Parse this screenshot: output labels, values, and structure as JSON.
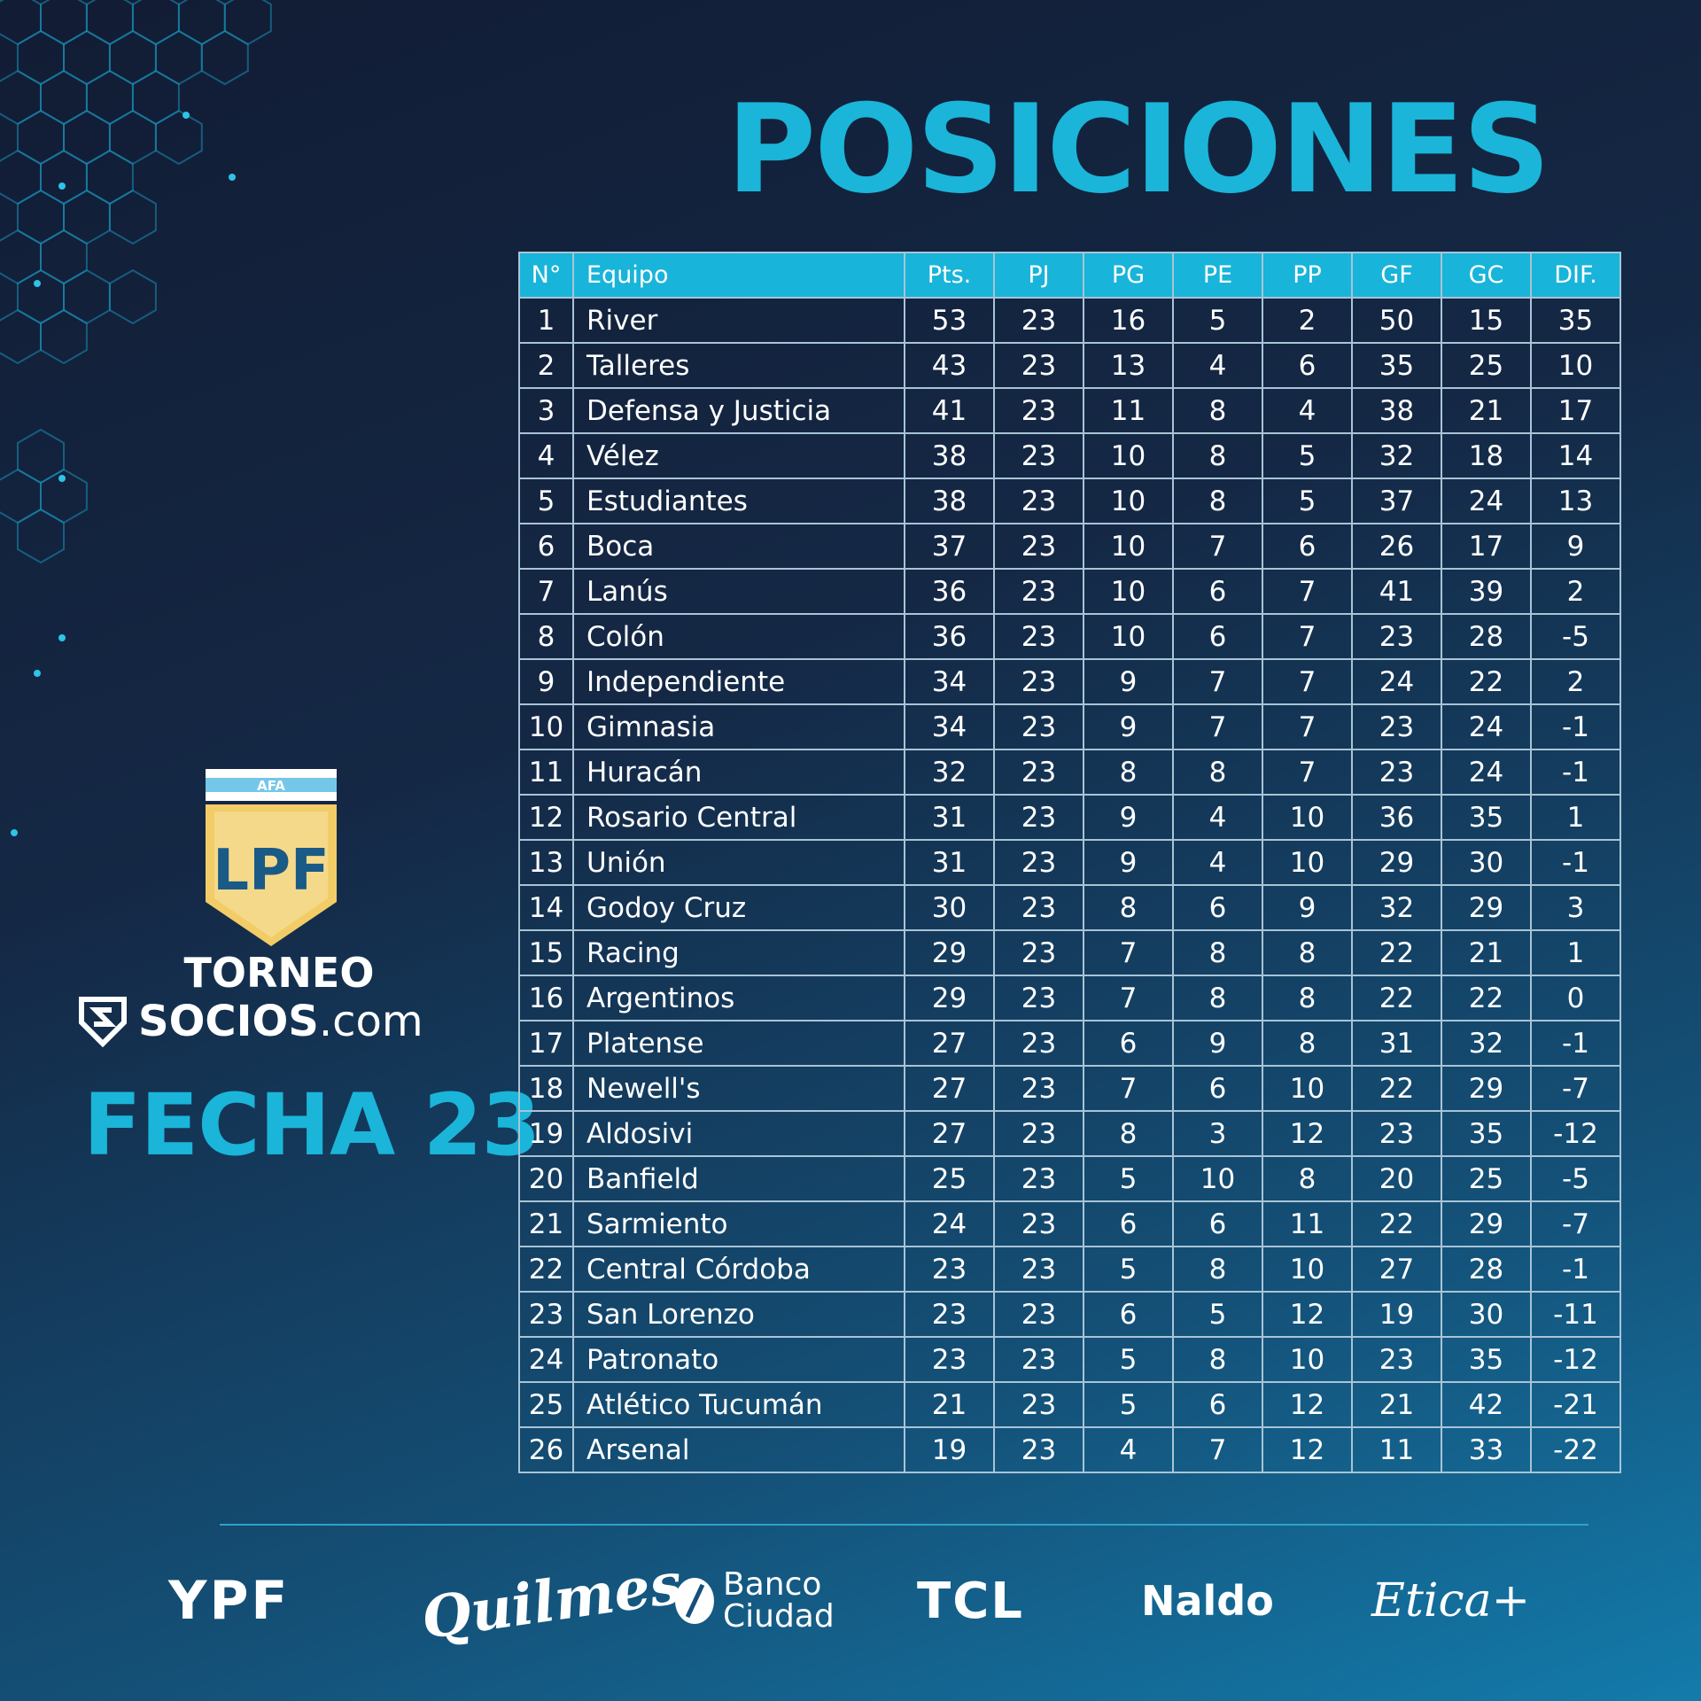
{
  "title": "POSICIONES",
  "league": {
    "badge_text": "AFA",
    "crest_text": "LPF",
    "torneo": "TORNEO",
    "socios_bold": "SOCIOS",
    "socios_light": ".com",
    "fecha": "FECHA 23"
  },
  "colors": {
    "accent": "#1ab5d9",
    "background_dark": "#121c34",
    "background_light": "#137bab",
    "crest_gold": "#f2cc66",
    "crest_blue": "#1a5a86"
  },
  "table": {
    "headers": [
      "N°",
      "Equipo",
      "Pts.",
      "PJ",
      "PG",
      "PE",
      "PP",
      "GF",
      "GC",
      "DIF."
    ],
    "rows": [
      [
        "1",
        "River",
        "53",
        "23",
        "16",
        "5",
        "2",
        "50",
        "15",
        "35"
      ],
      [
        "2",
        "Talleres",
        "43",
        "23",
        "13",
        "4",
        "6",
        "35",
        "25",
        "10"
      ],
      [
        "3",
        "Defensa y Justicia",
        "41",
        "23",
        "11",
        "8",
        "4",
        "38",
        "21",
        "17"
      ],
      [
        "4",
        "Vélez",
        "38",
        "23",
        "10",
        "8",
        "5",
        "32",
        "18",
        "14"
      ],
      [
        "5",
        "Estudiantes",
        "38",
        "23",
        "10",
        "8",
        "5",
        "37",
        "24",
        "13"
      ],
      [
        "6",
        "Boca",
        "37",
        "23",
        "10",
        "7",
        "6",
        "26",
        "17",
        "9"
      ],
      [
        "7",
        "Lanús",
        "36",
        "23",
        "10",
        "6",
        "7",
        "41",
        "39",
        "2"
      ],
      [
        "8",
        "Colón",
        "36",
        "23",
        "10",
        "6",
        "7",
        "23",
        "28",
        "-5"
      ],
      [
        "9",
        "Independiente",
        "34",
        "23",
        "9",
        "7",
        "7",
        "24",
        "22",
        "2"
      ],
      [
        "10",
        "Gimnasia",
        "34",
        "23",
        "9",
        "7",
        "7",
        "23",
        "24",
        "-1"
      ],
      [
        "11",
        "Huracán",
        "32",
        "23",
        "8",
        "8",
        "7",
        "23",
        "24",
        "-1"
      ],
      [
        "12",
        "Rosario Central",
        "31",
        "23",
        "9",
        "4",
        "10",
        "36",
        "35",
        "1"
      ],
      [
        "13",
        "Unión",
        "31",
        "23",
        "9",
        "4",
        "10",
        "29",
        "30",
        "-1"
      ],
      [
        "14",
        "Godoy Cruz",
        "30",
        "23",
        "8",
        "6",
        "9",
        "32",
        "29",
        "3"
      ],
      [
        "15",
        "Racing",
        "29",
        "23",
        "7",
        "8",
        "8",
        "22",
        "21",
        "1"
      ],
      [
        "16",
        "Argentinos",
        "29",
        "23",
        "7",
        "8",
        "8",
        "22",
        "22",
        "0"
      ],
      [
        "17",
        "Platense",
        "27",
        "23",
        "6",
        "9",
        "8",
        "31",
        "32",
        "-1"
      ],
      [
        "18",
        "Newell's",
        "27",
        "23",
        "7",
        "6",
        "10",
        "22",
        "29",
        "-7"
      ],
      [
        "19",
        "Aldosivi",
        "27",
        "23",
        "8",
        "3",
        "12",
        "23",
        "35",
        "-12"
      ],
      [
        "20",
        "Banfield",
        "25",
        "23",
        "5",
        "10",
        "8",
        "20",
        "25",
        "-5"
      ],
      [
        "21",
        "Sarmiento",
        "24",
        "23",
        "6",
        "6",
        "11",
        "22",
        "29",
        "-7"
      ],
      [
        "22",
        "Central Córdoba",
        "23",
        "23",
        "5",
        "8",
        "10",
        "27",
        "28",
        "-1"
      ],
      [
        "23",
        "San Lorenzo",
        "23",
        "23",
        "6",
        "5",
        "12",
        "19",
        "30",
        "-11"
      ],
      [
        "24",
        "Patronato",
        "23",
        "23",
        "5",
        "8",
        "10",
        "23",
        "35",
        "-12"
      ],
      [
        "25",
        "Atlético Tucumán",
        "21",
        "23",
        "5",
        "6",
        "12",
        "21",
        "42",
        "-21"
      ],
      [
        "26",
        "Arsenal",
        "19",
        "23",
        "4",
        "7",
        "12",
        "11",
        "33",
        "-22"
      ]
    ]
  },
  "sponsors": {
    "ypf": "YPF",
    "quilmes": "Quilmes",
    "banco_line1": "Banco",
    "banco_line2": "Ciudad",
    "tcl": "TCL",
    "naldo": "Naldo",
    "etica": "Etica+"
  }
}
